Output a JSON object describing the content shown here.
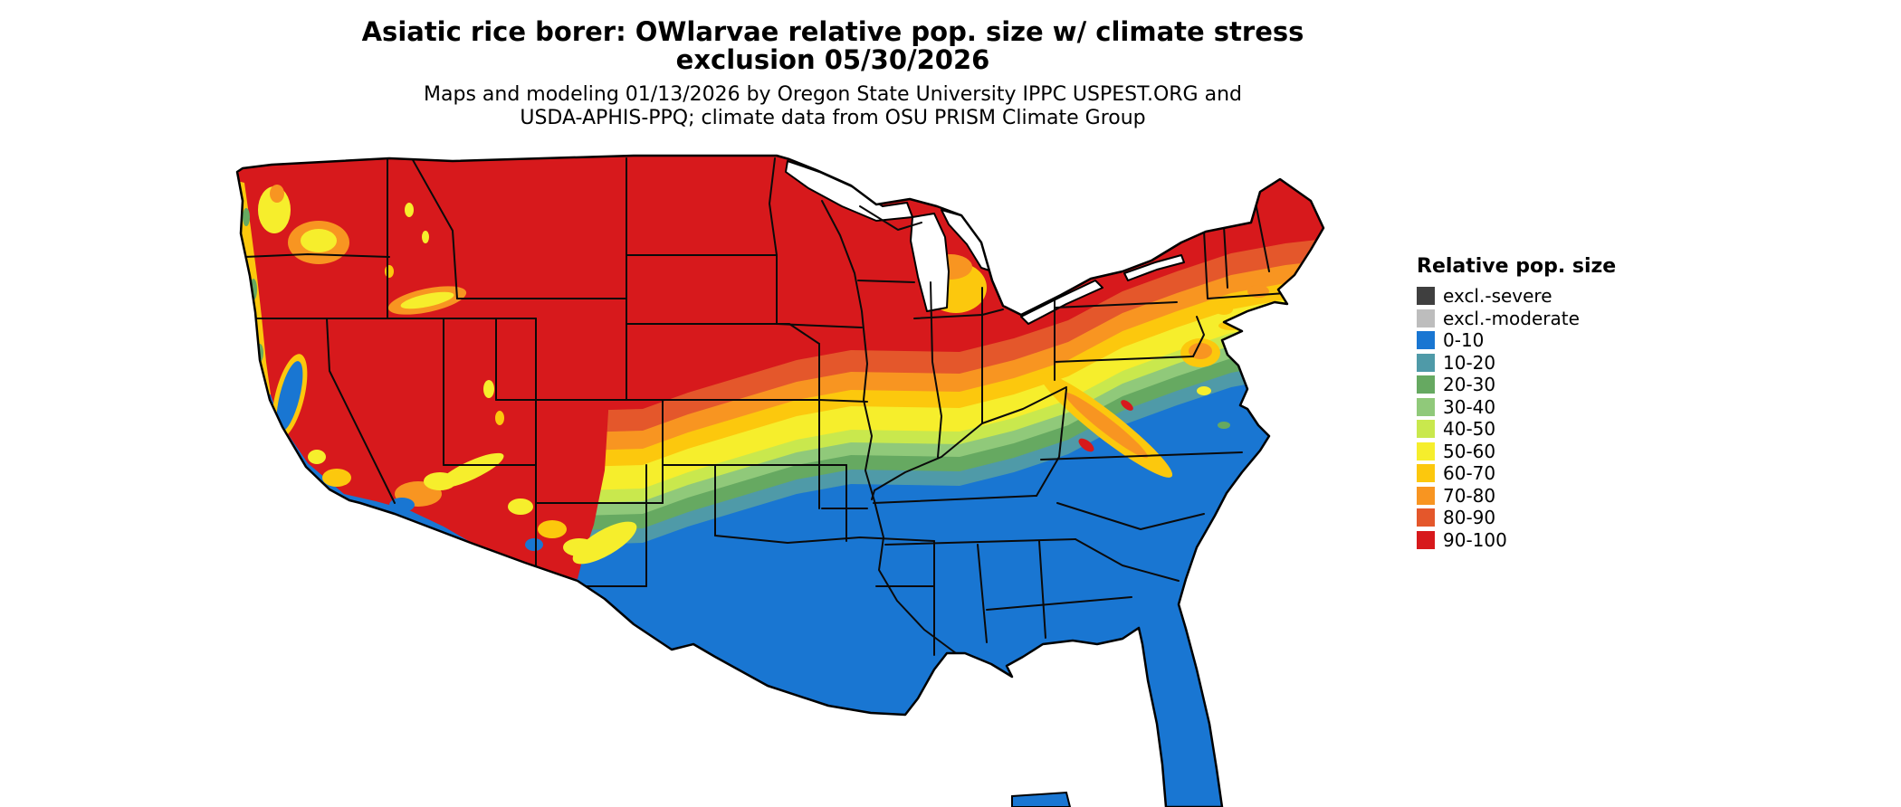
{
  "title": {
    "line1": "Asiatic rice borer: OWlarvae relative pop. size w/ climate stress",
    "line2": "exclusion 05/30/2026"
  },
  "subtitle": {
    "line1": "Maps and modeling 01/13/2026 by Oregon State University IPPC USPEST.ORG and",
    "line2": "USDA-APHIS-PPQ; climate data from OSU PRISM Climate Group"
  },
  "legend": {
    "title": "Relative pop. size",
    "items": [
      {
        "label": "excl.-severe",
        "color": "#3f3f3f"
      },
      {
        "label": "excl.-moderate",
        "color": "#bdbdbd"
      },
      {
        "label": "0-10",
        "color": "#1976d2"
      },
      {
        "label": "10-20",
        "color": "#4f9aa8"
      },
      {
        "label": "20-30",
        "color": "#66a961"
      },
      {
        "label": "30-40",
        "color": "#90c97a"
      },
      {
        "label": "40-50",
        "color": "#c9e84d"
      },
      {
        "label": "50-60",
        "color": "#f6ee2c"
      },
      {
        "label": "60-70",
        "color": "#fcc80d"
      },
      {
        "label": "70-80",
        "color": "#f89521"
      },
      {
        "label": "80-90",
        "color": "#e4572b"
      },
      {
        "label": "90-100",
        "color": "#d7191c"
      }
    ]
  }
}
